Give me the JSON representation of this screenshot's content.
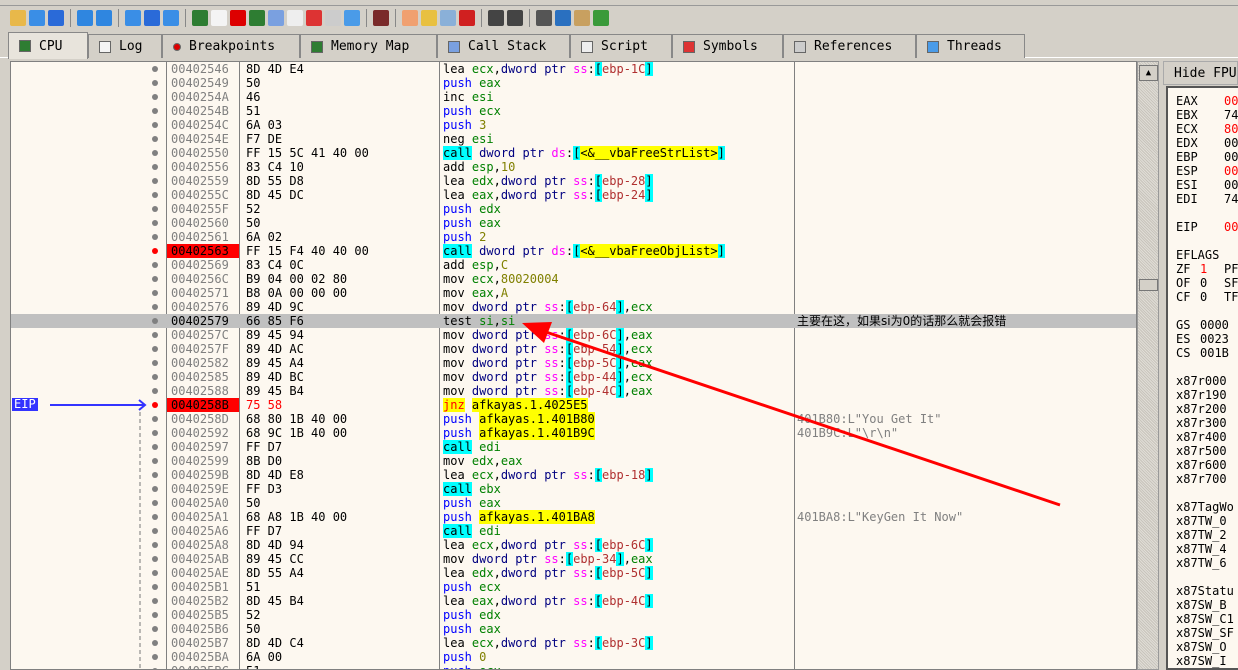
{
  "toolbar": {
    "icons": [
      "open-icon",
      "restart-icon",
      "stop-icon",
      "run-icon",
      "pause-icon",
      "step-into-icon",
      "step-over-icon",
      "execute-till-return-icon",
      "cpu-icon",
      "log-icon",
      "breakpoint-icon",
      "memory-map-icon",
      "call-stack-icon",
      "script-icon",
      "symbols-icon",
      "references-icon",
      "threads-icon",
      "patches-icon",
      "comments-icon",
      "labels-icon",
      "bookmarks-icon",
      "functions-icon",
      "strings-icon",
      "calculator-icon",
      "globe-icon",
      "plugin-icon",
      "bug-icon",
      "about-icon"
    ]
  },
  "tabs": [
    {
      "label": "CPU",
      "icon": "cpu-icon"
    },
    {
      "label": "Log",
      "icon": "log-icon"
    },
    {
      "label": "Breakpoints",
      "icon": "breakpoint-icon"
    },
    {
      "label": "Memory Map",
      "icon": "memory-map-icon"
    },
    {
      "label": "Call Stack",
      "icon": "call-stack-icon"
    },
    {
      "label": "Script",
      "icon": "script-icon"
    },
    {
      "label": "Symbols",
      "icon": "symbols-icon"
    },
    {
      "label": "References",
      "icon": "references-icon"
    },
    {
      "label": "Threads",
      "icon": "threads-icon"
    }
  ],
  "eip_label": "EIP",
  "colors": {
    "breakpoint": "#ff0000",
    "selection": "#c0c0c0",
    "annotation_arrow": "#ff0000",
    "eip_arrow": "#3333ff"
  },
  "disasm": [
    {
      "addr": "00402546",
      "bytes": "8D 4D E4",
      "ins": "lea ecx,dword ptr ss:[ebp-1C]"
    },
    {
      "addr": "00402549",
      "bytes": "50",
      "ins": "push eax"
    },
    {
      "addr": "0040254A",
      "bytes": "46",
      "ins": "inc esi"
    },
    {
      "addr": "0040254B",
      "bytes": "51",
      "ins": "push ecx"
    },
    {
      "addr": "0040254C",
      "bytes": "6A 03",
      "ins": "push 3"
    },
    {
      "addr": "0040254E",
      "bytes": "F7 DE",
      "ins": "neg esi"
    },
    {
      "addr": "00402550",
      "bytes": "FF 15 5C 41 40 00",
      "ins": "call dword ptr ds:[<&__vbaFreeStrList>]"
    },
    {
      "addr": "00402556",
      "bytes": "83 C4 10",
      "ins": "add esp,10"
    },
    {
      "addr": "00402559",
      "bytes": "8D 55 D8",
      "ins": "lea edx,dword ptr ss:[ebp-28]"
    },
    {
      "addr": "0040255C",
      "bytes": "8D 45 DC",
      "ins": "lea eax,dword ptr ss:[ebp-24]"
    },
    {
      "addr": "0040255F",
      "bytes": "52",
      "ins": "push edx"
    },
    {
      "addr": "00402560",
      "bytes": "50",
      "ins": "push eax"
    },
    {
      "addr": "00402561",
      "bytes": "6A 02",
      "ins": "push 2"
    },
    {
      "addr": "00402563",
      "bytes": "FF 15 F4 40 40 00",
      "ins": "call dword ptr ds:[<&__vbaFreeObjList>]",
      "breakpoint": true
    },
    {
      "addr": "00402569",
      "bytes": "83 C4 0C",
      "ins": "add esp,C"
    },
    {
      "addr": "0040256C",
      "bytes": "B9 04 00 02 80",
      "ins": "mov ecx,80020004"
    },
    {
      "addr": "00402571",
      "bytes": "B8 0A 00 00 00",
      "ins": "mov eax,A"
    },
    {
      "addr": "00402576",
      "bytes": "89 4D 9C",
      "ins": "mov dword ptr ss:[ebp-64],ecx"
    },
    {
      "addr": "00402579",
      "bytes": "66 85 F6",
      "ins": "test si,si",
      "selected": true,
      "comment": "主要在这，如果si为0的话那么就会报错"
    },
    {
      "addr": "0040257C",
      "bytes": "89 45 94",
      "ins": "mov dword ptr ss:[ebp-6C],eax"
    },
    {
      "addr": "0040257F",
      "bytes": "89 4D AC",
      "ins": "mov dword ptr ss:[ebp-54],ecx"
    },
    {
      "addr": "00402582",
      "bytes": "89 45 A4",
      "ins": "mov dword ptr ss:[ebp-5C],eax"
    },
    {
      "addr": "00402585",
      "bytes": "89 4D BC",
      "ins": "mov dword ptr ss:[ebp-44],ecx"
    },
    {
      "addr": "00402588",
      "bytes": "89 45 B4",
      "ins": "mov dword ptr ss:[ebp-4C],eax"
    },
    {
      "addr": "0040258B",
      "bytes": "75 58",
      "ins": "jnz afkayas.1.4025E5",
      "breakpoint": true,
      "eip": true
    },
    {
      "addr": "0040258D",
      "bytes": "68 80 1B 40 00",
      "ins": "push afkayas.1.401B80",
      "comment": "401B80:L\"You Get It\""
    },
    {
      "addr": "00402592",
      "bytes": "68 9C 1B 40 00",
      "ins": "push afkayas.1.401B9C",
      "comment": "401B9C:L\"\\r\\n\""
    },
    {
      "addr": "00402597",
      "bytes": "FF D7",
      "ins": "call edi"
    },
    {
      "addr": "00402599",
      "bytes": "8B D0",
      "ins": "mov edx,eax"
    },
    {
      "addr": "0040259B",
      "bytes": "8D 4D E8",
      "ins": "lea ecx,dword ptr ss:[ebp-18]"
    },
    {
      "addr": "0040259E",
      "bytes": "FF D3",
      "ins": "call ebx"
    },
    {
      "addr": "004025A0",
      "bytes": "50",
      "ins": "push eax"
    },
    {
      "addr": "004025A1",
      "bytes": "68 A8 1B 40 00",
      "ins": "push afkayas.1.401BA8",
      "comment": "401BA8:L\"KeyGen It Now\""
    },
    {
      "addr": "004025A6",
      "bytes": "FF D7",
      "ins": "call edi"
    },
    {
      "addr": "004025A8",
      "bytes": "8D 4D 94",
      "ins": "lea ecx,dword ptr ss:[ebp-6C]"
    },
    {
      "addr": "004025AB",
      "bytes": "89 45 CC",
      "ins": "mov dword ptr ss:[ebp-34],eax"
    },
    {
      "addr": "004025AE",
      "bytes": "8D 55 A4",
      "ins": "lea edx,dword ptr ss:[ebp-5C]"
    },
    {
      "addr": "004025B1",
      "bytes": "51",
      "ins": "push ecx"
    },
    {
      "addr": "004025B2",
      "bytes": "8D 45 B4",
      "ins": "lea eax,dword ptr ss:[ebp-4C]"
    },
    {
      "addr": "004025B5",
      "bytes": "52",
      "ins": "push edx"
    },
    {
      "addr": "004025B6",
      "bytes": "50",
      "ins": "push eax"
    },
    {
      "addr": "004025B7",
      "bytes": "8D 4D C4",
      "ins": "lea ecx,dword ptr ss:[ebp-3C]"
    },
    {
      "addr": "004025BA",
      "bytes": "6A 00",
      "ins": "push 0"
    },
    {
      "addr": "004025BC",
      "bytes": "51",
      "ins": "push ecx"
    }
  ],
  "registers": {
    "hide_fpu_label": "Hide FPU",
    "lines": [
      {
        "name": "EAX",
        "value": "00",
        "changed": true
      },
      {
        "name": "EBX",
        "value": "74"
      },
      {
        "name": "ECX",
        "value": "80",
        "changed": true
      },
      {
        "name": "EDX",
        "value": "00"
      },
      {
        "name": "EBP",
        "value": "00"
      },
      {
        "name": "ESP",
        "value": "00",
        "changed": true
      },
      {
        "name": "ESI",
        "value": "00"
      },
      {
        "name": "EDI",
        "value": "74"
      },
      {
        "name": "",
        "value": ""
      },
      {
        "name": "EIP",
        "value": "00",
        "changed": true
      },
      {
        "name": "",
        "value": ""
      },
      {
        "name": "EFLAGS",
        "value": ""
      },
      {
        "name": "ZF",
        "value": "1",
        "changed": true,
        "extra": "PF"
      },
      {
        "name": "OF",
        "value": "0",
        "extra": "SF"
      },
      {
        "name": "CF",
        "value": "0",
        "extra": "TF"
      },
      {
        "name": "",
        "value": ""
      },
      {
        "name": "GS",
        "value": "0000"
      },
      {
        "name": "ES",
        "value": "0023"
      },
      {
        "name": "CS",
        "value": "001B"
      },
      {
        "name": "",
        "value": ""
      },
      {
        "name": "x87r0",
        "value": "00"
      },
      {
        "name": "x87r1",
        "value": "90"
      },
      {
        "name": "x87r2",
        "value": "00"
      },
      {
        "name": "x87r3",
        "value": "00"
      },
      {
        "name": "x87r4",
        "value": "00"
      },
      {
        "name": "x87r5",
        "value": "00"
      },
      {
        "name": "x87r6",
        "value": "00"
      },
      {
        "name": "x87r7",
        "value": "00"
      },
      {
        "name": "",
        "value": ""
      },
      {
        "name": "x87TagWo",
        "value": ""
      },
      {
        "name": "x87TW_0",
        "value": ""
      },
      {
        "name": "x87TW_2",
        "value": ""
      },
      {
        "name": "x87TW_4",
        "value": ""
      },
      {
        "name": "x87TW_6",
        "value": ""
      },
      {
        "name": "",
        "value": ""
      },
      {
        "name": "x87Statu",
        "value": ""
      },
      {
        "name": "x87SW_B",
        "value": ""
      },
      {
        "name": "x87SW_C1",
        "value": ""
      },
      {
        "name": "x87SW_SF",
        "value": ""
      },
      {
        "name": "x87SW_O",
        "value": ""
      },
      {
        "name": "x87SW_I",
        "value": ""
      }
    ]
  }
}
